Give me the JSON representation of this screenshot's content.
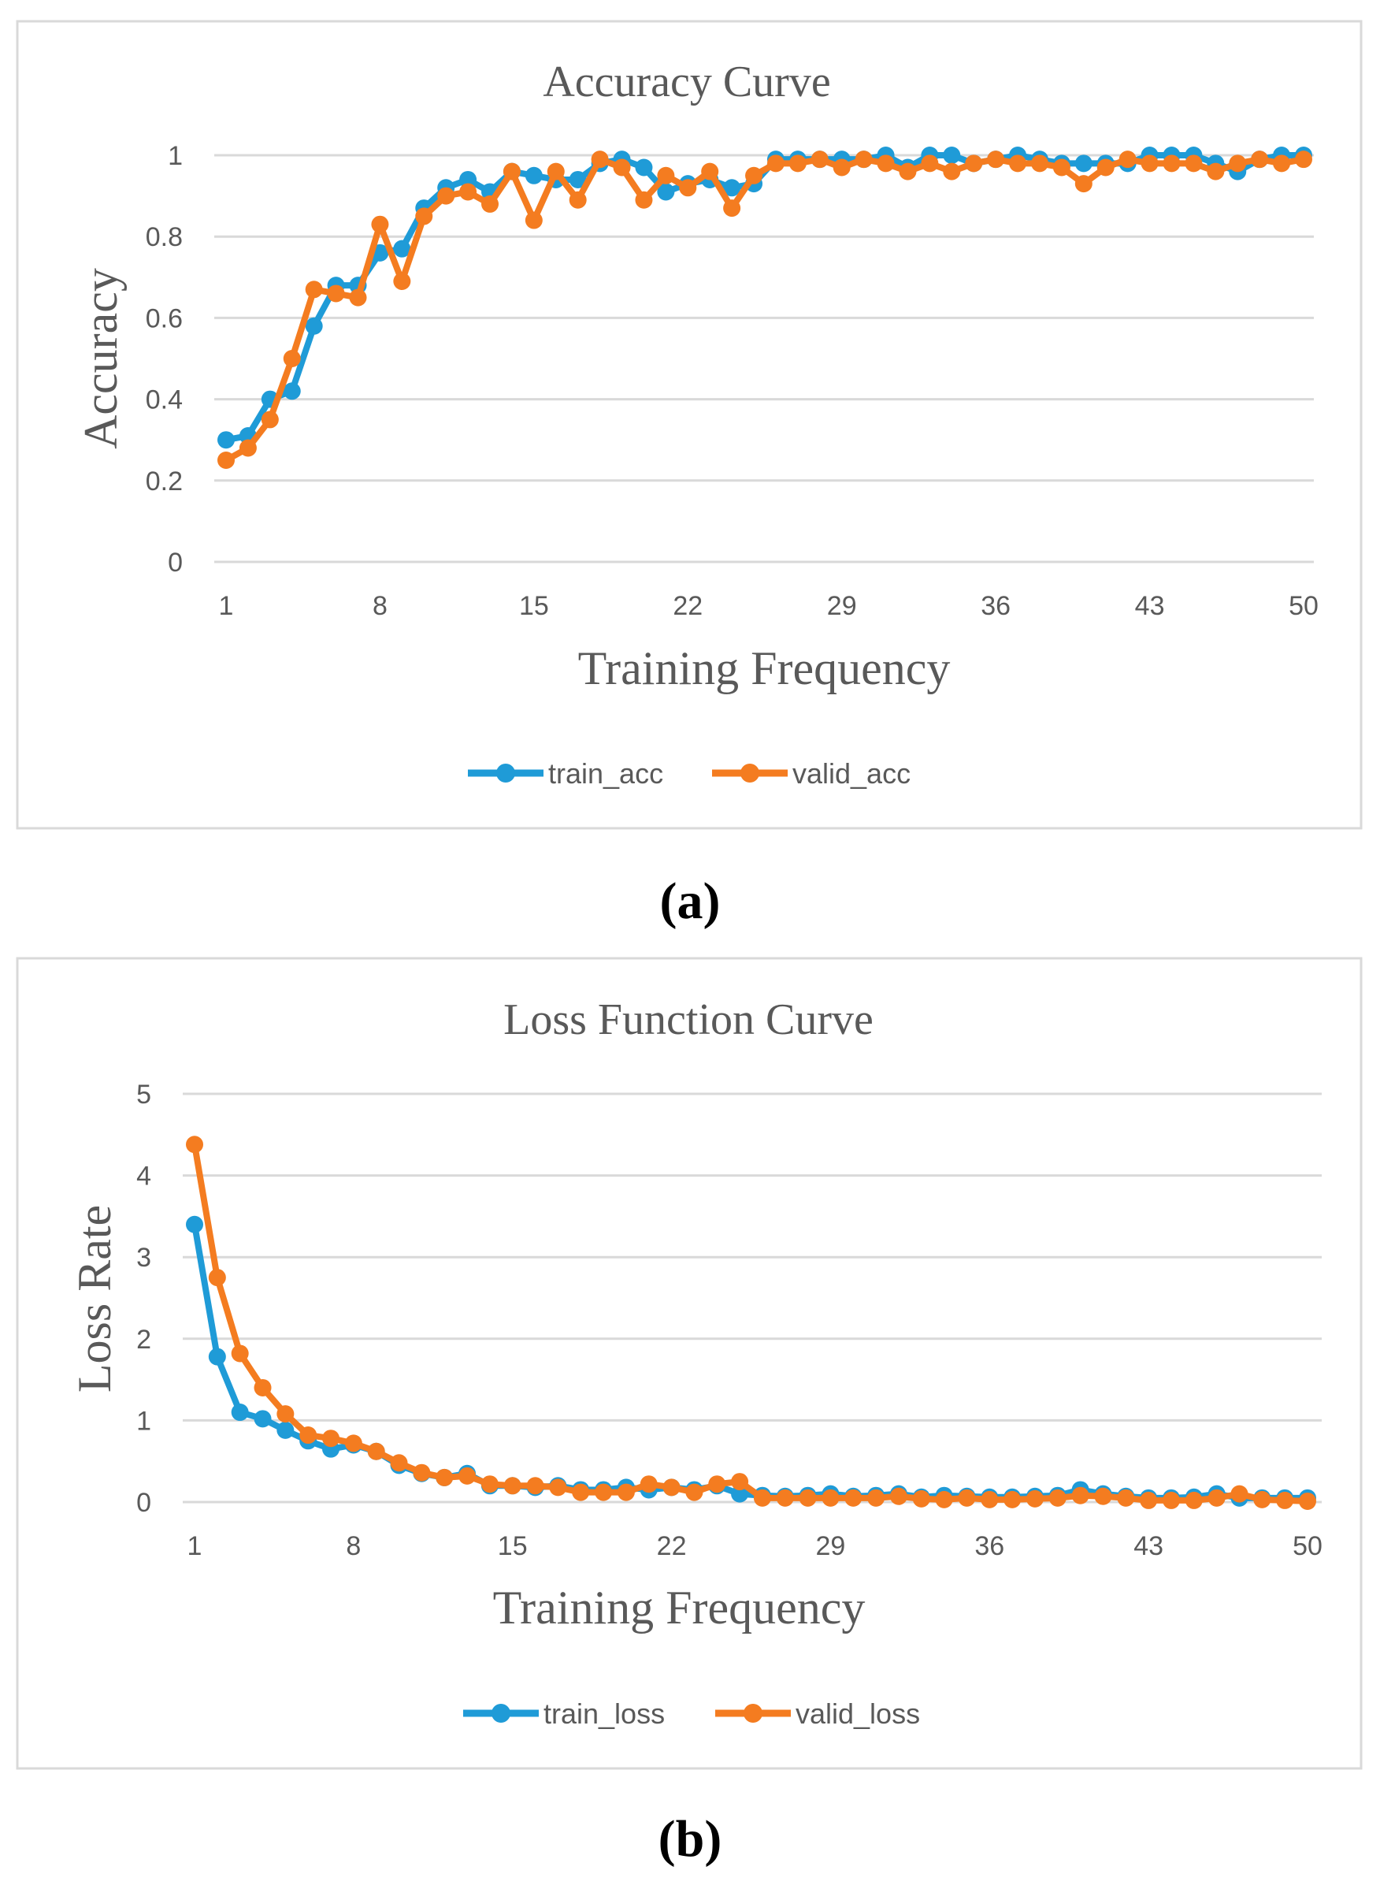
{
  "panel_labels": [
    "(a)",
    "(b)"
  ],
  "chart_data": [
    {
      "type": "line",
      "title": "Accuracy Curve",
      "xlabel": "Training Frequency",
      "ylabel": "Accuracy",
      "x": [
        1,
        2,
        3,
        4,
        5,
        6,
        7,
        8,
        9,
        10,
        11,
        12,
        13,
        14,
        15,
        16,
        17,
        18,
        19,
        20,
        21,
        22,
        23,
        24,
        25,
        26,
        27,
        28,
        29,
        30,
        31,
        32,
        33,
        34,
        35,
        36,
        37,
        38,
        39,
        40,
        41,
        42,
        43,
        44,
        45,
        46,
        47,
        48,
        49,
        50
      ],
      "xticks": [
        "1",
        "8",
        "15",
        "22",
        "29",
        "36",
        "43",
        "50"
      ],
      "ylim": [
        0,
        1
      ],
      "yticks": [
        "0",
        "0.2",
        "0.4",
        "0.6",
        "0.8",
        "1"
      ],
      "grid": true,
      "legend_position": "bottom",
      "series": [
        {
          "name": "train_acc",
          "color": "#1f9bd7",
          "values": [
            0.3,
            0.31,
            0.4,
            0.42,
            0.58,
            0.68,
            0.68,
            0.76,
            0.77,
            0.87,
            0.92,
            0.94,
            0.91,
            0.96,
            0.95,
            0.94,
            0.94,
            0.98,
            0.99,
            0.97,
            0.91,
            0.93,
            0.94,
            0.92,
            0.93,
            0.99,
            0.99,
            0.99,
            0.99,
            0.99,
            1.0,
            0.97,
            1.0,
            1.0,
            0.98,
            0.99,
            1.0,
            0.99,
            0.98,
            0.98,
            0.98,
            0.98,
            1.0,
            1.0,
            1.0,
            0.98,
            0.96,
            0.99,
            1.0,
            1.0
          ]
        },
        {
          "name": "valid_acc",
          "color": "#f47c20",
          "values": [
            0.25,
            0.28,
            0.35,
            0.5,
            0.67,
            0.66,
            0.65,
            0.83,
            0.69,
            0.85,
            0.9,
            0.91,
            0.88,
            0.96,
            0.84,
            0.96,
            0.89,
            0.99,
            0.97,
            0.89,
            0.95,
            0.92,
            0.96,
            0.87,
            0.95,
            0.98,
            0.98,
            0.99,
            0.97,
            0.99,
            0.98,
            0.96,
            0.98,
            0.96,
            0.98,
            0.99,
            0.98,
            0.98,
            0.97,
            0.93,
            0.97,
            0.99,
            0.98,
            0.98,
            0.98,
            0.96,
            0.98,
            0.99,
            0.98,
            0.99
          ]
        }
      ]
    },
    {
      "type": "line",
      "title": "Loss Function Curve",
      "xlabel": "Training Frequency",
      "ylabel": "Loss Rate",
      "x": [
        1,
        2,
        3,
        4,
        5,
        6,
        7,
        8,
        9,
        10,
        11,
        12,
        13,
        14,
        15,
        16,
        17,
        18,
        19,
        20,
        21,
        22,
        23,
        24,
        25,
        26,
        27,
        28,
        29,
        30,
        31,
        32,
        33,
        34,
        35,
        36,
        37,
        38,
        39,
        40,
        41,
        42,
        43,
        44,
        45,
        46,
        47,
        48,
        49,
        50
      ],
      "xticks": [
        "1",
        "8",
        "15",
        "22",
        "29",
        "36",
        "43",
        "50"
      ],
      "ylim": [
        0,
        5
      ],
      "yticks": [
        "0",
        "1",
        "2",
        "3",
        "4",
        "5"
      ],
      "grid": true,
      "legend_position": "bottom",
      "series": [
        {
          "name": "train_loss",
          "color": "#1f9bd7",
          "values": [
            3.4,
            1.78,
            1.1,
            1.02,
            0.88,
            0.75,
            0.65,
            0.7,
            0.62,
            0.45,
            0.35,
            0.3,
            0.35,
            0.2,
            0.2,
            0.18,
            0.2,
            0.15,
            0.15,
            0.18,
            0.15,
            0.18,
            0.15,
            0.2,
            0.1,
            0.08,
            0.07,
            0.08,
            0.1,
            0.07,
            0.08,
            0.1,
            0.06,
            0.08,
            0.07,
            0.06,
            0.06,
            0.07,
            0.08,
            0.15,
            0.1,
            0.07,
            0.05,
            0.05,
            0.06,
            0.1,
            0.05,
            0.05,
            0.05,
            0.05
          ]
        },
        {
          "name": "valid_loss",
          "color": "#f47c20",
          "values": [
            4.38,
            2.75,
            1.82,
            1.4,
            1.08,
            0.82,
            0.78,
            0.72,
            0.62,
            0.48,
            0.36,
            0.3,
            0.32,
            0.22,
            0.2,
            0.2,
            0.18,
            0.12,
            0.12,
            0.12,
            0.22,
            0.18,
            0.12,
            0.22,
            0.25,
            0.05,
            0.05,
            0.05,
            0.05,
            0.05,
            0.05,
            0.07,
            0.04,
            0.03,
            0.05,
            0.03,
            0.03,
            0.04,
            0.05,
            0.08,
            0.07,
            0.05,
            0.02,
            0.02,
            0.02,
            0.05,
            0.1,
            0.03,
            0.02,
            0.01
          ]
        }
      ]
    }
  ]
}
